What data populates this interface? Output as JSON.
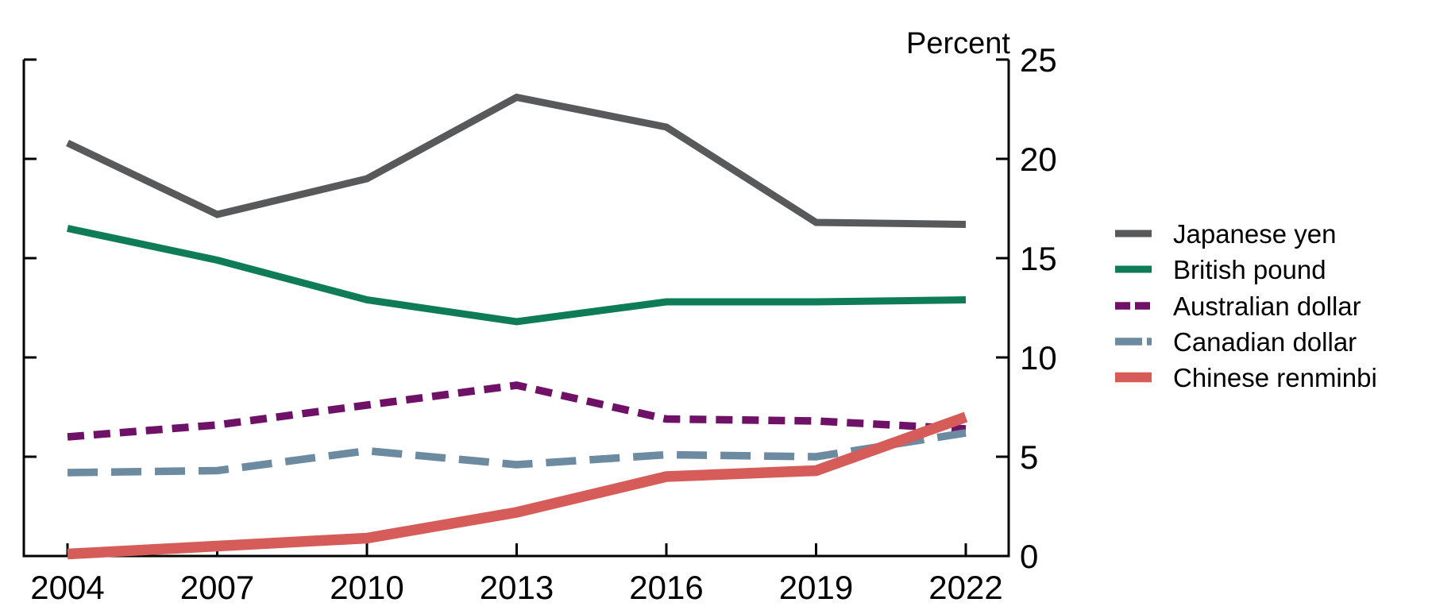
{
  "chart_data": {
    "type": "line",
    "title": "",
    "ylabel": "Percent",
    "x": [
      2004,
      2007,
      2010,
      2013,
      2016,
      2019,
      2022
    ],
    "x_tick_labels": [
      "2004",
      "2007",
      "2010",
      "2013",
      "2016",
      "2019",
      "2022"
    ],
    "ylim": [
      0,
      25
    ],
    "yticks": [
      0,
      5,
      10,
      15,
      20,
      25
    ],
    "grid": false,
    "legend_position": "right",
    "axis_color": "#000000",
    "series": [
      {
        "name": "Japanese yen",
        "color": "#58595B",
        "line_style": "solid",
        "line_width": 9,
        "values": [
          20.8,
          17.2,
          19.0,
          23.1,
          21.6,
          16.8,
          16.7
        ]
      },
      {
        "name": "British pound",
        "color": "#0D7C57",
        "line_style": "solid",
        "line_width": 9,
        "values": [
          16.5,
          14.9,
          12.9,
          11.8,
          12.8,
          12.8,
          12.9
        ]
      },
      {
        "name": "Australian dollar",
        "color": "#6E1167",
        "line_style": "dashed",
        "dash_pattern": "21 12",
        "line_width": 9.5,
        "values": [
          6.0,
          6.6,
          7.6,
          8.6,
          6.9,
          6.8,
          6.4
        ]
      },
      {
        "name": "Canadian dollar",
        "color": "#6C8AA0",
        "line_style": "long-dashed",
        "dash_pattern": "38 17",
        "line_width": 9.5,
        "values": [
          4.2,
          4.3,
          5.3,
          4.6,
          5.1,
          5.0,
          6.2
        ]
      },
      {
        "name": "Chinese renminbi",
        "color": "#D55C58",
        "line_style": "solid",
        "line_width": 13.5,
        "values": [
          0.1,
          0.5,
          0.9,
          2.2,
          4.0,
          4.3,
          7.0
        ]
      }
    ]
  }
}
